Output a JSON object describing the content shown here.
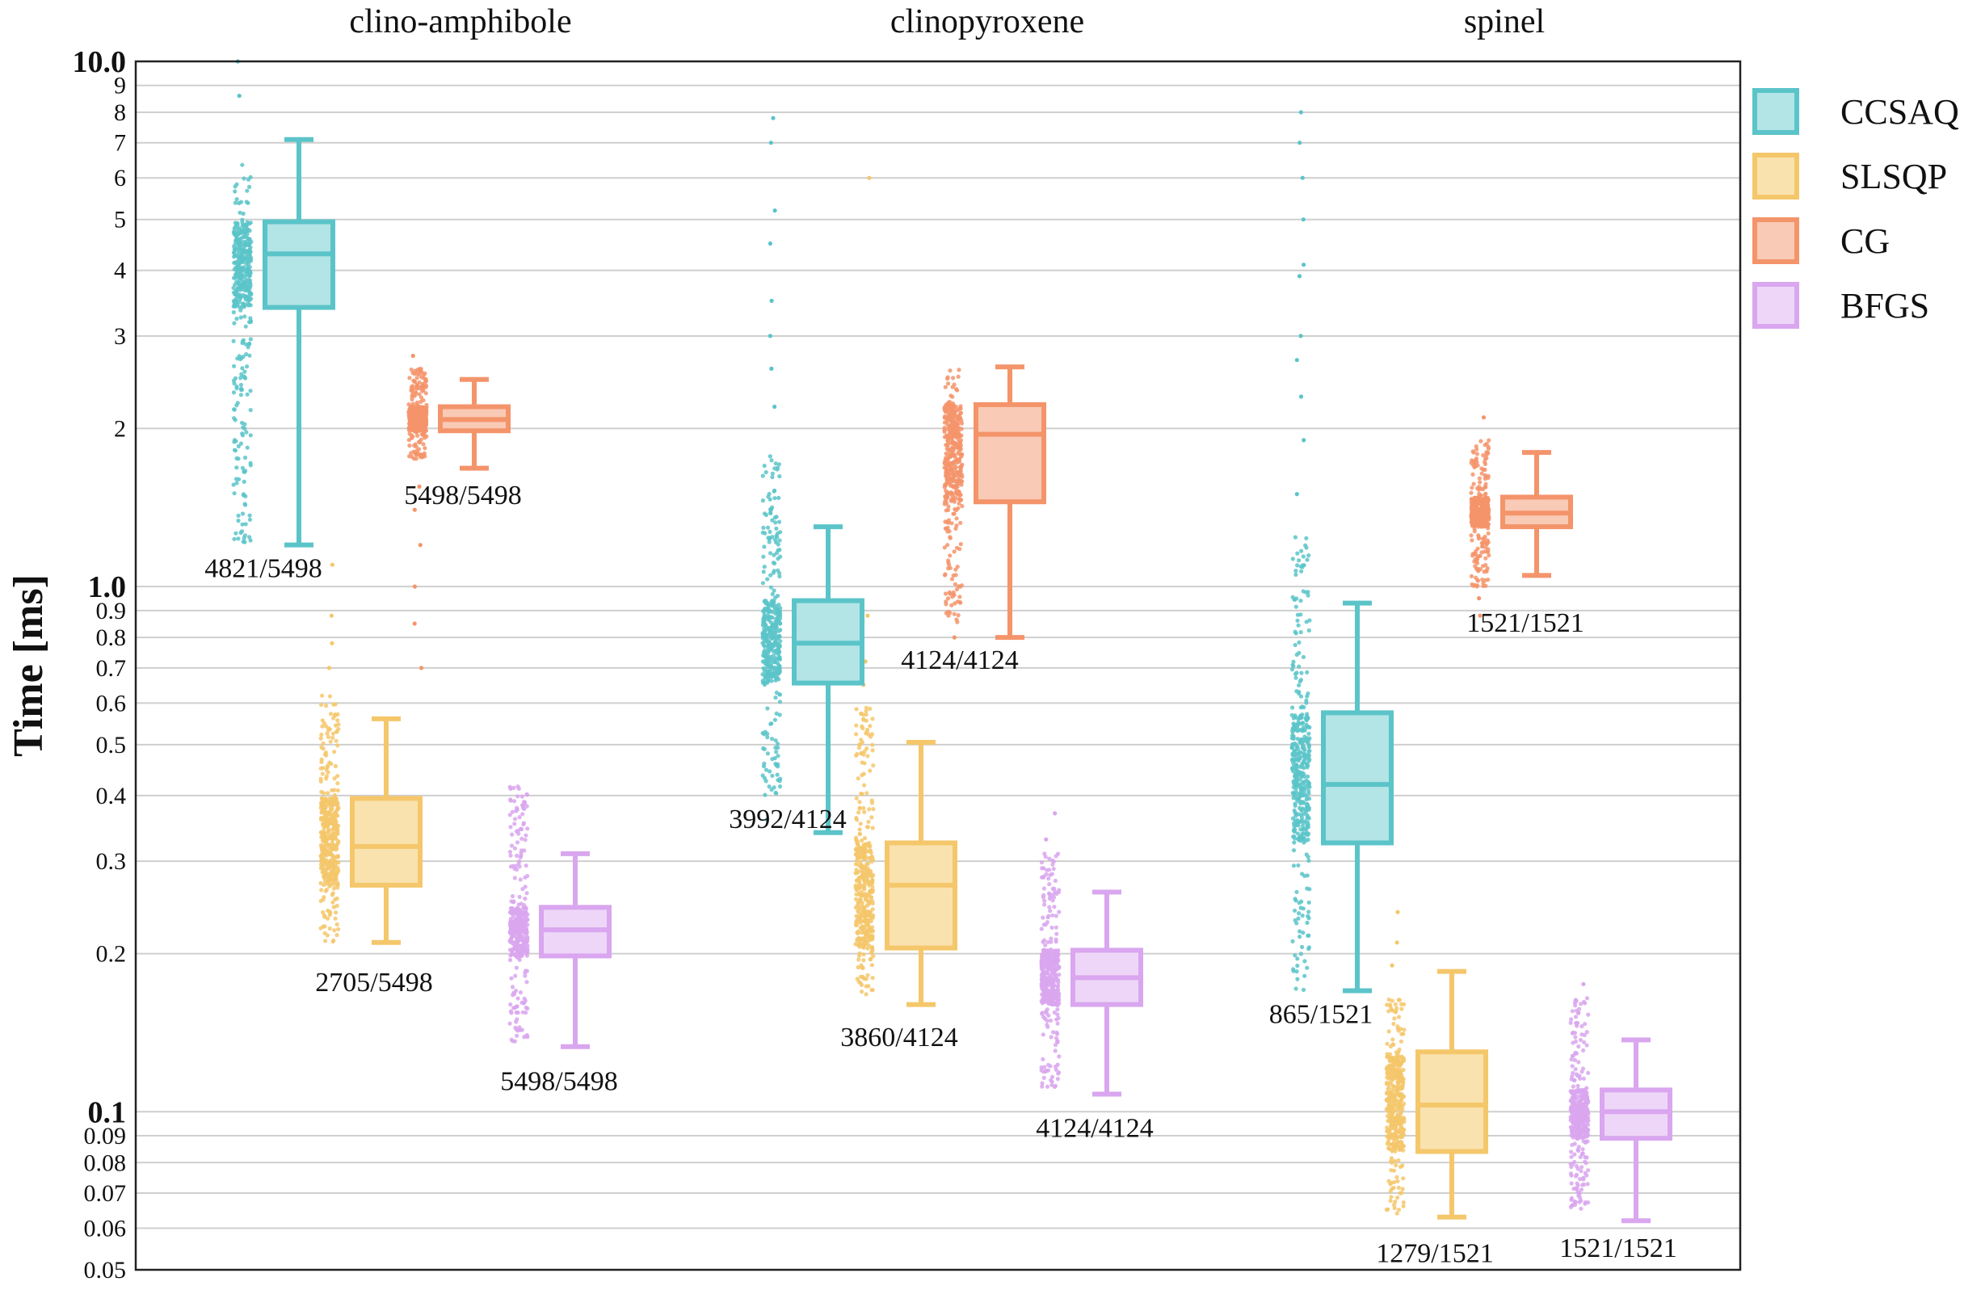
{
  "chart_data": {
    "type": "box",
    "ylabel": "Time [ms]",
    "yscale": "log",
    "ylim": [
      0.05,
      10.0
    ],
    "y_major_ticks": [
      {
        "value": 10,
        "label": "10.0"
      },
      {
        "value": 1,
        "label": "1.0"
      },
      {
        "value": 0.1,
        "label": "0.1"
      }
    ],
    "y_minor_ticks": [
      {
        "value": 9,
        "label": "9"
      },
      {
        "value": 8,
        "label": "8"
      },
      {
        "value": 7,
        "label": "7"
      },
      {
        "value": 6,
        "label": "6"
      },
      {
        "value": 5,
        "label": "5"
      },
      {
        "value": 4,
        "label": "4"
      },
      {
        "value": 3,
        "label": "3"
      },
      {
        "value": 2,
        "label": "2"
      },
      {
        "value": 0.9,
        "label": "0.9"
      },
      {
        "value": 0.8,
        "label": "0.8"
      },
      {
        "value": 0.7,
        "label": "0.7"
      },
      {
        "value": 0.6,
        "label": "0.6"
      },
      {
        "value": 0.5,
        "label": "0.5"
      },
      {
        "value": 0.4,
        "label": "0.4"
      },
      {
        "value": 0.3,
        "label": "0.3"
      },
      {
        "value": 0.2,
        "label": "0.2"
      },
      {
        "value": 0.09,
        "label": "0.09"
      },
      {
        "value": 0.08,
        "label": "0.08"
      },
      {
        "value": 0.07,
        "label": "0.07"
      },
      {
        "value": 0.06,
        "label": "0.06"
      },
      {
        "value": 0.05,
        "label": "0.05"
      }
    ],
    "grid": "horizontal",
    "legend_placement": "right",
    "groups": [
      "clino-amphibole",
      "clinopyroxene",
      "spinel"
    ],
    "series": [
      {
        "name": "CCSAQ",
        "color": "#5bc4c9",
        "fill": "#b3e4e6",
        "boxes": [
          {
            "group": "clino-amphibole",
            "whisker_low": 1.2,
            "q1": 3.4,
            "median": 4.3,
            "q3": 4.95,
            "whisker_high": 7.1,
            "points_low": 1.2,
            "points_high": 6.4,
            "outliers": [
              8.6,
              10.0
            ],
            "count_label": "4821/5498"
          },
          {
            "group": "clinopyroxene",
            "whisker_low": 0.34,
            "q1": 0.655,
            "median": 0.78,
            "q3": 0.94,
            "whisker_high": 1.3,
            "points_low": 0.4,
            "points_high": 1.8,
            "outliers": [
              0.36,
              2.2,
              2.6,
              3.0,
              3.5,
              4.5,
              5.2,
              7.0,
              7.8
            ],
            "count_label": "3992/4124"
          },
          {
            "group": "spinel",
            "whisker_low": 0.17,
            "q1": 0.325,
            "median": 0.42,
            "q3": 0.575,
            "whisker_high": 0.93,
            "points_low": 0.17,
            "points_high": 1.25,
            "outliers": [
              1.5,
              1.9,
              2.3,
              2.7,
              3.0,
              3.9,
              4.1,
              5.0,
              6.0,
              7.0,
              8.0
            ],
            "count_label": "865/1521"
          }
        ]
      },
      {
        "name": "SLSQP",
        "color": "#f5c76b",
        "fill": "#f9e2ae",
        "boxes": [
          {
            "group": "clino-amphibole",
            "whisker_low": 0.21,
            "q1": 0.27,
            "median": 0.32,
            "q3": 0.395,
            "whisker_high": 0.56,
            "points_low": 0.21,
            "points_high": 0.62,
            "outliers": [
              0.7,
              0.78,
              0.88,
              1.1
            ],
            "count_label": "2705/5498"
          },
          {
            "group": "clinopyroxene",
            "whisker_low": 0.16,
            "q1": 0.205,
            "median": 0.27,
            "q3": 0.325,
            "whisker_high": 0.505,
            "points_low": 0.165,
            "points_high": 0.6,
            "outliers": [
              0.65,
              0.72,
              0.88,
              6.0
            ],
            "count_label": "3860/4124"
          },
          {
            "group": "spinel",
            "whisker_low": 0.063,
            "q1": 0.084,
            "median": 0.103,
            "q3": 0.13,
            "whisker_high": 0.185,
            "points_low": 0.064,
            "points_high": 0.165,
            "outliers": [
              0.19,
              0.21,
              0.24
            ],
            "count_label": "1279/1521"
          }
        ]
      },
      {
        "name": "CG",
        "color": "#f4946b",
        "fill": "#f9cab5",
        "boxes": [
          {
            "group": "clino-amphibole",
            "whisker_low": 1.68,
            "q1": 1.98,
            "median": 2.08,
            "q3": 2.2,
            "whisker_high": 2.48,
            "points_low": 1.75,
            "points_high": 2.6,
            "outliers": [
              0.7,
              0.85,
              1.0,
              1.2,
              1.4,
              1.55,
              2.75
            ],
            "count_label": "5498/5498"
          },
          {
            "group": "clinopyroxene",
            "whisker_low": 0.8,
            "q1": 1.45,
            "median": 1.95,
            "q3": 2.22,
            "whisker_high": 2.62,
            "points_low": 0.85,
            "points_high": 2.6,
            "outliers": [
              0.8
            ],
            "count_label": "4124/4124"
          },
          {
            "group": "spinel",
            "whisker_low": 1.05,
            "q1": 1.3,
            "median": 1.38,
            "q3": 1.48,
            "whisker_high": 1.8,
            "points_low": 1.0,
            "points_high": 1.9,
            "outliers": [
              0.88,
              0.95,
              2.1
            ],
            "count_label": "1521/1521"
          }
        ]
      },
      {
        "name": "BFGS",
        "color": "#d9a6ef",
        "fill": "#eed6f8",
        "boxes": [
          {
            "group": "clino-amphibole",
            "whisker_low": 0.133,
            "q1": 0.198,
            "median": 0.222,
            "q3": 0.245,
            "whisker_high": 0.31,
            "points_low": 0.135,
            "points_high": 0.42,
            "outliers": [],
            "count_label": "5498/5498"
          },
          {
            "group": "clinopyroxene",
            "whisker_low": 0.108,
            "q1": 0.16,
            "median": 0.18,
            "q3": 0.203,
            "whisker_high": 0.262,
            "points_low": 0.11,
            "points_high": 0.31,
            "outliers": [
              0.33,
              0.37
            ],
            "count_label": "4124/4124"
          },
          {
            "group": "spinel",
            "whisker_low": 0.062,
            "q1": 0.089,
            "median": 0.1,
            "q3": 0.11,
            "whisker_high": 0.137,
            "points_low": 0.065,
            "points_high": 0.165,
            "outliers": [
              0.175
            ],
            "count_label": "1521/1521"
          }
        ]
      }
    ]
  }
}
